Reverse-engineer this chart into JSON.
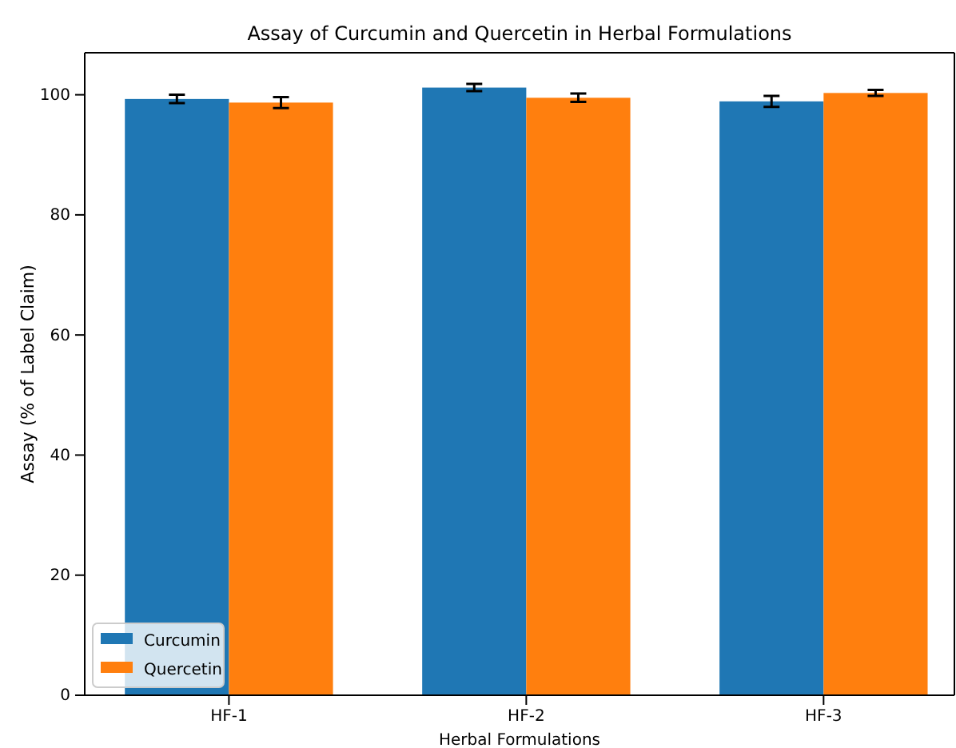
{
  "chart_data": {
    "type": "bar",
    "title": "Assay of Curcumin and Quercetin in Herbal Formulations",
    "xlabel": "Herbal Formulations",
    "ylabel": "Assay (% of Label Claim)",
    "categories": [
      "HF-1",
      "HF-2",
      "HF-3"
    ],
    "series": [
      {
        "name": "Curcumin",
        "color": "#1f77b4",
        "values": [
          99.3,
          101.2,
          98.9
        ],
        "errors": [
          0.7,
          0.6,
          0.9
        ]
      },
      {
        "name": "Quercetin",
        "color": "#ff7f0e",
        "values": [
          98.7,
          99.5,
          100.3
        ],
        "errors": [
          0.9,
          0.7,
          0.5
        ]
      }
    ],
    "ylim": [
      0,
      107
    ],
    "yticks": [
      0,
      20,
      40,
      60,
      80,
      100
    ],
    "legend": "bottom left"
  }
}
